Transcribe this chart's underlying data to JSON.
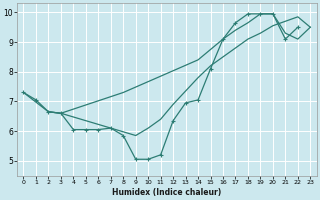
{
  "xlabel": "Humidex (Indice chaleur)",
  "background_color": "#cce8ee",
  "grid_color": "#ffffff",
  "line_color": "#2d7d74",
  "xlim": [
    -0.5,
    23.5
  ],
  "ylim": [
    4.5,
    10.3
  ],
  "xtick_values": [
    0,
    1,
    2,
    3,
    4,
    5,
    6,
    7,
    8,
    9,
    10,
    11,
    12,
    13,
    14,
    15,
    16,
    17,
    18,
    19,
    20,
    21,
    22,
    23
  ],
  "ytick_values": [
    5,
    6,
    7,
    8,
    9,
    10
  ],
  "line1_x": [
    0,
    1,
    2,
    3,
    4,
    5,
    6,
    7,
    8,
    9,
    10,
    11,
    12,
    13,
    14,
    15,
    16,
    17,
    18,
    19,
    20,
    21,
    22
  ],
  "line1_y": [
    7.3,
    7.05,
    6.65,
    6.6,
    6.05,
    6.05,
    6.05,
    6.1,
    5.85,
    5.05,
    5.05,
    5.2,
    6.35,
    6.95,
    7.05,
    8.1,
    9.1,
    9.65,
    9.95,
    9.95,
    9.95,
    9.1,
    9.5
  ],
  "line2_x": [
    0,
    2,
    3,
    8,
    14,
    16,
    17,
    18,
    19,
    20,
    21,
    22,
    23
  ],
  "line2_y": [
    7.3,
    6.65,
    6.6,
    7.3,
    8.4,
    9.1,
    9.4,
    9.65,
    9.95,
    9.95,
    9.3,
    9.1,
    9.5
  ],
  "line3_x": [
    2,
    3,
    9,
    10,
    11,
    12,
    13,
    14,
    15,
    16,
    17,
    18,
    19,
    20,
    21,
    22,
    23
  ],
  "line3_y": [
    6.65,
    6.6,
    5.85,
    6.1,
    6.4,
    6.9,
    7.35,
    7.8,
    8.2,
    8.5,
    8.8,
    9.1,
    9.3,
    9.55,
    9.7,
    9.85,
    9.5
  ]
}
